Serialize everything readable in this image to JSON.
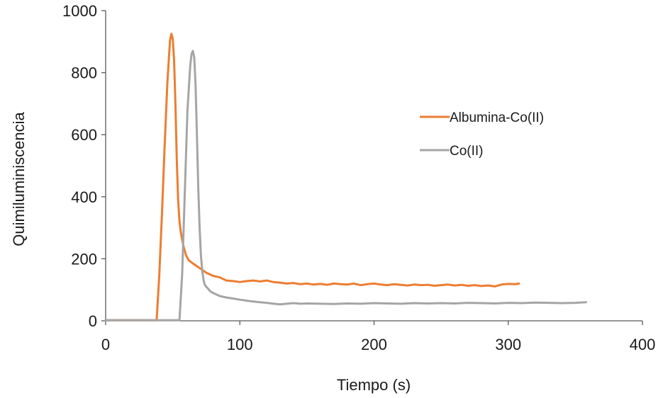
{
  "chart_data": {
    "type": "line",
    "title": "",
    "xlabel": "Tiempo (s)",
    "ylabel": "Quimiluminiscencia",
    "xlim": [
      0,
      400
    ],
    "ylim": [
      0,
      1000
    ],
    "xticks": [
      0,
      100,
      200,
      300,
      400
    ],
    "yticks": [
      0,
      200,
      400,
      600,
      800,
      1000
    ],
    "grid": false,
    "legend_position": "right",
    "series": [
      {
        "name": "Albumina-Co(II)",
        "color": "#ed7d31",
        "x": [
          0,
          38,
          40,
          42,
          44,
          46,
          48,
          49,
          50,
          51,
          52,
          53,
          54,
          55,
          56,
          58,
          60,
          62,
          65,
          70,
          75,
          80,
          85,
          90,
          95,
          100,
          105,
          110,
          115,
          120,
          125,
          130,
          135,
          140,
          145,
          150,
          155,
          160,
          165,
          170,
          175,
          180,
          185,
          190,
          195,
          200,
          205,
          210,
          215,
          220,
          225,
          230,
          235,
          240,
          245,
          250,
          255,
          260,
          265,
          270,
          275,
          280,
          285,
          290,
          295,
          300,
          305,
          308
        ],
        "y": [
          2,
          2,
          150,
          350,
          570,
          770,
          905,
          925,
          910,
          840,
          700,
          520,
          390,
          320,
          285,
          240,
          210,
          195,
          185,
          170,
          155,
          145,
          140,
          130,
          128,
          125,
          128,
          130,
          127,
          130,
          125,
          123,
          120,
          122,
          118,
          120,
          117,
          119,
          116,
          120,
          118,
          117,
          120,
          115,
          118,
          120,
          117,
          115,
          118,
          116,
          114,
          117,
          115,
          116,
          113,
          115,
          117,
          114,
          116,
          113,
          115,
          112,
          114,
          111,
          117,
          119,
          118,
          120
        ]
      },
      {
        "name": "Co(II)",
        "color": "#a5a5a5",
        "x": [
          0,
          55,
          57,
          59,
          61,
          63,
          64,
          65,
          66,
          67,
          68,
          69,
          70,
          71,
          72,
          73,
          74,
          76,
          78,
          80,
          85,
          90,
          95,
          100,
          105,
          110,
          115,
          120,
          125,
          130,
          135,
          140,
          145,
          150,
          160,
          170,
          180,
          190,
          200,
          210,
          220,
          230,
          240,
          250,
          260,
          270,
          280,
          290,
          300,
          310,
          320,
          330,
          340,
          350,
          358
        ],
        "y": [
          2,
          2,
          150,
          420,
          680,
          820,
          860,
          870,
          850,
          760,
          600,
          430,
          300,
          210,
          160,
          130,
          115,
          105,
          95,
          90,
          80,
          75,
          72,
          68,
          65,
          62,
          60,
          58,
          55,
          53,
          55,
          57,
          55,
          56,
          55,
          54,
          56,
          55,
          57,
          56,
          55,
          57,
          56,
          57,
          56,
          58,
          57,
          56,
          58,
          57,
          59,
          58,
          57,
          58,
          60
        ]
      }
    ]
  }
}
